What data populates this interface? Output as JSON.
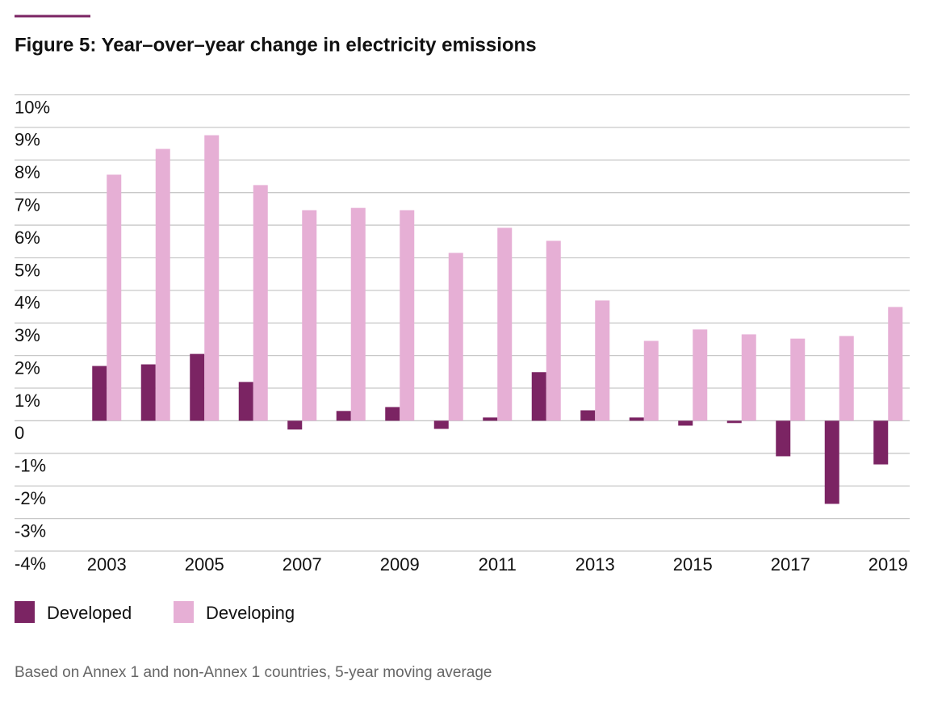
{
  "chart_data": {
    "type": "bar",
    "title": "Figure 5: Year–over–year change in electricity emissions",
    "footnote": "Based on Annex 1 and non-Annex 1 countries, 5-year moving average",
    "categories": [
      "2003",
      null,
      "2005",
      null,
      "2007",
      null,
      "2009",
      null,
      "2011",
      null,
      "2013",
      null,
      "2015",
      null,
      "2017",
      null,
      "2019"
    ],
    "series": [
      {
        "name": "Developed",
        "color": "#7b2463",
        "values": [
          1.68,
          1.73,
          2.05,
          1.19,
          -0.27,
          0.3,
          0.42,
          -0.25,
          0.1,
          1.49,
          0.32,
          0.1,
          -0.15,
          -0.07,
          -1.09,
          -2.55,
          -1.34
        ]
      },
      {
        "name": "Developing",
        "color": "#e6afd5",
        "values": [
          7.55,
          8.34,
          8.76,
          7.23,
          6.46,
          6.53,
          6.46,
          5.15,
          5.92,
          5.52,
          3.69,
          2.45,
          2.8,
          2.65,
          2.52,
          2.6,
          3.49
        ]
      }
    ],
    "ylim": [
      -4,
      10
    ],
    "yticks": [
      {
        "value": -4,
        "label": "-4%"
      },
      {
        "value": -3,
        "label": "-3%"
      },
      {
        "value": -2,
        "label": "-2%"
      },
      {
        "value": -1,
        "label": "-1%"
      },
      0,
      {
        "value": 1,
        "label": "1%"
      },
      {
        "value": 2,
        "label": "2%"
      },
      {
        "value": 3,
        "label": "3%"
      },
      {
        "value": 4,
        "label": "4%"
      },
      {
        "value": 5,
        "label": "5%"
      },
      {
        "value": 6,
        "label": "6%"
      },
      {
        "value": 7,
        "label": "7%"
      },
      {
        "value": 8,
        "label": "8%"
      },
      {
        "value": 9,
        "label": "9%"
      },
      {
        "value": 10,
        "label": "10%"
      }
    ],
    "grid": true
  }
}
